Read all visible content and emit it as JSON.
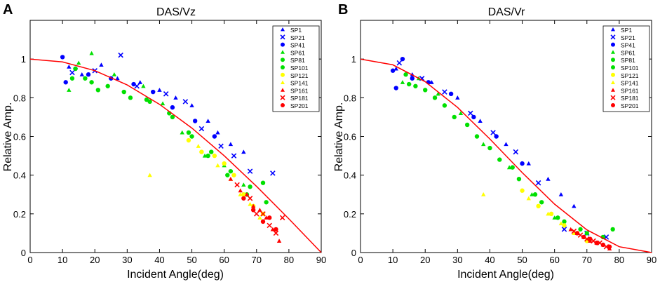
{
  "chart_data": [
    {
      "panel_label": "A",
      "type": "scatter",
      "title": "DAS/Vz",
      "xlabel": "Incident Angle(deg)",
      "ylabel": "Relative Amp.",
      "xlim": [
        0,
        90
      ],
      "ylim": [
        0,
        1.2
      ],
      "xticks": [
        "0",
        "10",
        "20",
        "30",
        "40",
        "50",
        "60",
        "70",
        "80",
        "90"
      ],
      "yticks": [
        "0",
        "0.2",
        "0.4",
        "0.6",
        "0.8",
        "1"
      ],
      "curve": {
        "name": "cos(incident angle)",
        "color": "#ff0000",
        "x": [
          0,
          10,
          20,
          30,
          40,
          50,
          60,
          70,
          80,
          90
        ],
        "y": [
          1.0,
          0.985,
          0.94,
          0.866,
          0.766,
          0.643,
          0.5,
          0.342,
          0.174,
          0.0
        ]
      },
      "series": [
        {
          "name": "SP1",
          "marker": "triangle",
          "color": "#0000ff",
          "x": [
            12,
            16,
            22,
            27,
            34,
            40,
            45,
            50,
            55,
            58,
            62,
            66
          ],
          "y": [
            0.96,
            0.92,
            0.97,
            0.9,
            0.88,
            0.84,
            0.8,
            0.76,
            0.68,
            0.62,
            0.56,
            0.52
          ]
        },
        {
          "name": "SP21",
          "marker": "x",
          "color": "#0000ff",
          "x": [
            13,
            20,
            28,
            33,
            42,
            48,
            53,
            59,
            63,
            68,
            75
          ],
          "y": [
            0.93,
            0.94,
            1.02,
            0.86,
            0.82,
            0.78,
            0.64,
            0.55,
            0.5,
            0.42,
            0.41
          ]
        },
        {
          "name": "SP41",
          "marker": "circle",
          "color": "#0000ff",
          "x": [
            10,
            11,
            14,
            18,
            25,
            32,
            38,
            44,
            51,
            57
          ],
          "y": [
            1.01,
            0.88,
            0.95,
            0.92,
            0.9,
            0.87,
            0.83,
            0.75,
            0.68,
            0.6
          ]
        },
        {
          "name": "SP61",
          "marker": "triangle",
          "color": "#00e000",
          "x": [
            12,
            15,
            19,
            26,
            35,
            41,
            47,
            54,
            60,
            66
          ],
          "y": [
            0.84,
            0.98,
            1.03,
            0.92,
            0.86,
            0.77,
            0.62,
            0.5,
            0.45,
            0.35
          ]
        },
        {
          "name": "SP81",
          "marker": "circle",
          "color": "#00e000",
          "x": [
            14,
            19,
            24,
            31,
            37,
            44,
            50,
            56,
            62,
            68,
            72
          ],
          "y": [
            0.95,
            0.88,
            0.86,
            0.8,
            0.78,
            0.7,
            0.6,
            0.52,
            0.42,
            0.34,
            0.36
          ]
        },
        {
          "name": "SP101",
          "marker": "circle",
          "color": "#00e000",
          "x": [
            13,
            17,
            21,
            29,
            36,
            43,
            49,
            55,
            61,
            67,
            73
          ],
          "y": [
            0.9,
            0.9,
            0.84,
            0.83,
            0.79,
            0.72,
            0.62,
            0.5,
            0.4,
            0.3,
            0.26
          ]
        },
        {
          "name": "SP121",
          "marker": "circle",
          "color": "#ffff00",
          "x": [
            49,
            53,
            57,
            60,
            63,
            66,
            69,
            72
          ],
          "y": [
            0.58,
            0.52,
            0.5,
            0.46,
            0.4,
            0.3,
            0.24,
            0.2
          ]
        },
        {
          "name": "SP141",
          "marker": "triangle",
          "color": "#ffff00",
          "x": [
            37,
            52,
            58,
            62,
            65,
            68,
            71
          ],
          "y": [
            0.4,
            0.55,
            0.45,
            0.38,
            0.3,
            0.25,
            0.18
          ]
        },
        {
          "name": "SP161",
          "marker": "triangle",
          "color": "#ff0000",
          "x": [
            62,
            65,
            67,
            69,
            71,
            73,
            75,
            77
          ],
          "y": [
            0.38,
            0.32,
            0.3,
            0.24,
            0.22,
            0.18,
            0.12,
            0.06
          ]
        },
        {
          "name": "SP181",
          "marker": "x",
          "color": "#ff0000",
          "x": [
            64,
            68,
            70,
            72,
            74,
            76,
            78
          ],
          "y": [
            0.35,
            0.28,
            0.2,
            0.2,
            0.14,
            0.1,
            0.18
          ]
        },
        {
          "name": "SP201",
          "marker": "circle",
          "color": "#ff0000",
          "x": [
            66,
            69,
            72,
            74,
            76
          ],
          "y": [
            0.28,
            0.22,
            0.16,
            0.18,
            0.12
          ]
        }
      ],
      "legend": "top-right"
    },
    {
      "panel_label": "B",
      "type": "scatter",
      "title": "DAS/Vr",
      "xlabel": "Incident Angle(deg)",
      "ylabel": "Relative Amp.",
      "xlim": [
        0,
        90
      ],
      "ylim": [
        0,
        1.2
      ],
      "xticks": [
        "0",
        "10",
        "20",
        "30",
        "40",
        "50",
        "60",
        "70",
        "80",
        "90"
      ],
      "yticks": [
        "0",
        "0.2",
        "0.4",
        "0.6",
        "0.8",
        "1"
      ],
      "curve": {
        "name": "cos^2(incident angle)",
        "color": "#ff0000",
        "x": [
          0,
          10,
          20,
          30,
          40,
          50,
          60,
          70,
          80,
          90
        ],
        "y": [
          1.0,
          0.97,
          0.883,
          0.75,
          0.587,
          0.413,
          0.25,
          0.117,
          0.03,
          0.0
        ]
      },
      "series": [
        {
          "name": "SP1",
          "marker": "triangle",
          "color": "#0000ff",
          "x": [
            11,
            16,
            22,
            30,
            37,
            45,
            52,
            58,
            62,
            66
          ],
          "y": [
            0.95,
            0.92,
            0.88,
            0.8,
            0.68,
            0.56,
            0.46,
            0.38,
            0.3,
            0.24
          ]
        },
        {
          "name": "SP21",
          "marker": "x",
          "color": "#0000ff",
          "x": [
            12,
            19,
            26,
            34,
            41,
            48,
            55,
            63,
            70,
            76
          ],
          "y": [
            0.98,
            0.9,
            0.83,
            0.72,
            0.62,
            0.52,
            0.36,
            0.12,
            0.1,
            0.08
          ]
        },
        {
          "name": "SP41",
          "marker": "circle",
          "color": "#0000ff",
          "x": [
            10,
            11,
            13,
            16,
            21,
            28,
            35,
            42,
            50
          ],
          "y": [
            0.94,
            0.85,
            1.0,
            0.9,
            0.88,
            0.82,
            0.7,
            0.6,
            0.46
          ]
        },
        {
          "name": "SP61",
          "marker": "triangle",
          "color": "#00e000",
          "x": [
            13,
            18,
            24,
            31,
            38,
            46,
            53,
            60,
            67
          ],
          "y": [
            0.88,
            0.9,
            0.82,
            0.72,
            0.56,
            0.44,
            0.3,
            0.18,
            0.1
          ]
        },
        {
          "name": "SP81",
          "marker": "circle",
          "color": "#00e000",
          "x": [
            15,
            20,
            26,
            33,
            40,
            47,
            54,
            61,
            68,
            75,
            78
          ],
          "y": [
            0.87,
            0.84,
            0.76,
            0.66,
            0.54,
            0.44,
            0.3,
            0.18,
            0.12,
            0.08,
            0.12
          ]
        },
        {
          "name": "SP101",
          "marker": "circle",
          "color": "#00e000",
          "x": [
            14,
            17,
            23,
            29,
            36,
            43,
            49,
            56,
            63,
            70
          ],
          "y": [
            0.92,
            0.86,
            0.8,
            0.7,
            0.6,
            0.48,
            0.38,
            0.26,
            0.16,
            0.1
          ]
        },
        {
          "name": "SP121",
          "marker": "circle",
          "color": "#ffff00",
          "x": [
            50,
            55,
            59,
            63,
            67,
            70
          ],
          "y": [
            0.32,
            0.24,
            0.2,
            0.14,
            0.1,
            0.06
          ]
        },
        {
          "name": "SP141",
          "marker": "triangle",
          "color": "#ffff00",
          "x": [
            38,
            52,
            58,
            62,
            66,
            69
          ],
          "y": [
            0.3,
            0.28,
            0.2,
            0.15,
            0.1,
            0.08
          ]
        },
        {
          "name": "SP161",
          "marker": "triangle",
          "color": "#ff0000",
          "x": [
            65,
            67,
            69,
            71,
            73,
            75,
            77
          ],
          "y": [
            0.12,
            0.1,
            0.08,
            0.06,
            0.05,
            0.04,
            0.02
          ]
        },
        {
          "name": "SP181",
          "marker": "x",
          "color": "#ff0000",
          "x": [
            66,
            68,
            70,
            72,
            74,
            76
          ],
          "y": [
            0.11,
            0.09,
            0.07,
            0.06,
            0.05,
            0.03
          ]
        },
        {
          "name": "SP201",
          "marker": "circle",
          "color": "#ff0000",
          "x": [
            67,
            69,
            71,
            73,
            75,
            77
          ],
          "y": [
            0.1,
            0.08,
            0.07,
            0.05,
            0.04,
            0.03
          ]
        }
      ],
      "legend": "top-right"
    }
  ]
}
